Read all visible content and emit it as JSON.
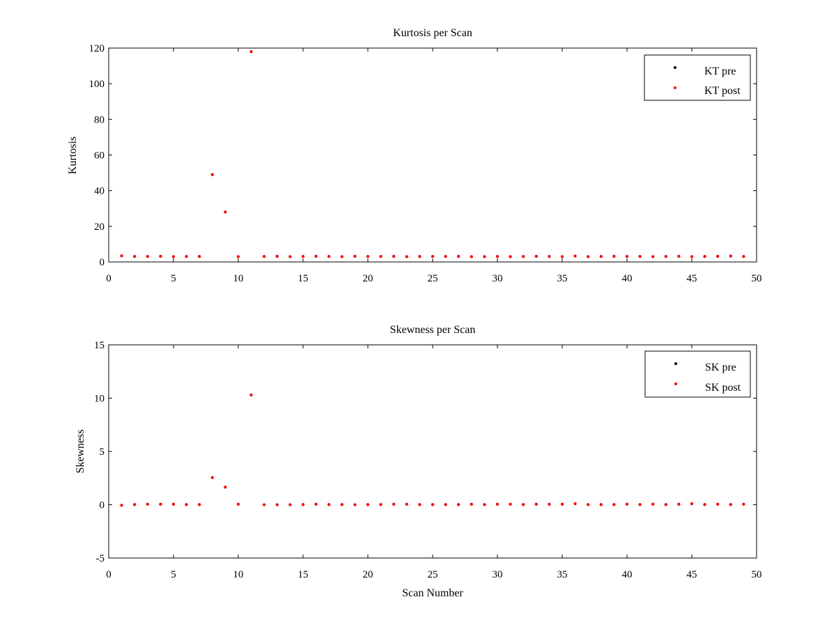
{
  "chart_data": [
    {
      "type": "scatter",
      "title": "Kurtosis per Scan",
      "xlabel": "",
      "ylabel": "Kurtosis",
      "xlim": [
        0,
        50
      ],
      "ylim": [
        0,
        120
      ],
      "xticks": [
        0,
        5,
        10,
        15,
        20,
        25,
        30,
        35,
        40,
        45,
        50
      ],
      "yticks": [
        0,
        20,
        40,
        60,
        80,
        100,
        120
      ],
      "grid": false,
      "legend_position": "top-right",
      "series": [
        {
          "name": "KT pre",
          "color": "#000000",
          "x": [
            1,
            2,
            3,
            4,
            5,
            6,
            7,
            8,
            9,
            10,
            11,
            12,
            13,
            14,
            15,
            16,
            17,
            18,
            19,
            20,
            21,
            22,
            23,
            24,
            25,
            26,
            27,
            28,
            29,
            30,
            31,
            32,
            33,
            34,
            35,
            36,
            37,
            38,
            39,
            40,
            41,
            42,
            43,
            44,
            45,
            46,
            47,
            48,
            49
          ],
          "y": [
            3.4,
            3.1,
            3.1,
            3.2,
            3.0,
            3.1,
            3.1,
            49,
            28,
            3.0,
            118,
            3.1,
            3.2,
            3.0,
            3.1,
            3.2,
            3.1,
            3.0,
            3.2,
            3.1,
            3.1,
            3.2,
            3.0,
            3.1,
            3.1,
            3.1,
            3.2,
            3.0,
            3.0,
            3.1,
            3.0,
            3.1,
            3.2,
            3.1,
            3.0,
            3.3,
            3.0,
            3.1,
            3.2,
            3.1,
            3.1,
            3.0,
            3.1,
            3.2,
            3.0,
            3.1,
            3.2,
            3.3,
            3.1
          ]
        },
        {
          "name": "KT post",
          "color": "#ff0000",
          "x": [
            1,
            2,
            3,
            4,
            5,
            6,
            7,
            8,
            9,
            10,
            11,
            12,
            13,
            14,
            15,
            16,
            17,
            18,
            19,
            20,
            21,
            22,
            23,
            24,
            25,
            26,
            27,
            28,
            29,
            30,
            31,
            32,
            33,
            34,
            35,
            36,
            37,
            38,
            39,
            40,
            41,
            42,
            43,
            44,
            45,
            46,
            47,
            48,
            49
          ],
          "y": [
            3.4,
            3.1,
            3.1,
            3.2,
            3.0,
            3.1,
            3.1,
            49,
            28,
            3.0,
            118,
            3.1,
            3.2,
            3.0,
            3.1,
            3.2,
            3.1,
            3.0,
            3.2,
            3.1,
            3.1,
            3.2,
            3.0,
            3.1,
            3.1,
            3.1,
            3.2,
            3.0,
            3.0,
            3.1,
            3.0,
            3.1,
            3.2,
            3.1,
            3.0,
            3.3,
            3.0,
            3.1,
            3.2,
            3.1,
            3.1,
            3.0,
            3.1,
            3.2,
            3.0,
            3.1,
            3.2,
            3.3,
            3.1
          ]
        }
      ]
    },
    {
      "type": "scatter",
      "title": "Skewness per Scan",
      "xlabel": "Scan Number",
      "ylabel": "Skewness",
      "xlim": [
        0,
        50
      ],
      "ylim": [
        -5,
        15
      ],
      "xticks": [
        0,
        5,
        10,
        15,
        20,
        25,
        30,
        35,
        40,
        45,
        50
      ],
      "yticks": [
        -5,
        0,
        5,
        10,
        15
      ],
      "grid": false,
      "legend_position": "top-right",
      "series": [
        {
          "name": "SK pre",
          "color": "#000000",
          "x": [
            1,
            2,
            3,
            4,
            5,
            6,
            7,
            8,
            9,
            10,
            11,
            12,
            13,
            14,
            15,
            16,
            17,
            18,
            19,
            20,
            21,
            22,
            23,
            24,
            25,
            26,
            27,
            28,
            29,
            30,
            31,
            32,
            33,
            34,
            35,
            36,
            37,
            38,
            39,
            40,
            41,
            42,
            43,
            44,
            45,
            46,
            47,
            48,
            49
          ],
          "y": [
            -0.05,
            0.02,
            0.05,
            0.05,
            0.05,
            0.02,
            0.02,
            2.55,
            1.65,
            0.05,
            10.3,
            0.0,
            0.0,
            0.0,
            0.02,
            0.05,
            0.02,
            0.02,
            0.0,
            0.02,
            0.02,
            0.05,
            0.05,
            0.02,
            0.02,
            0.02,
            0.02,
            0.05,
            0.02,
            0.05,
            0.05,
            0.02,
            0.05,
            0.05,
            0.05,
            0.1,
            0.02,
            0.02,
            0.02,
            0.05,
            0.02,
            0.05,
            0.02,
            0.05,
            0.1,
            0.02,
            0.05,
            0.02,
            0.05
          ]
        },
        {
          "name": "SK post",
          "color": "#ff0000",
          "x": [
            1,
            2,
            3,
            4,
            5,
            6,
            7,
            8,
            9,
            10,
            11,
            12,
            13,
            14,
            15,
            16,
            17,
            18,
            19,
            20,
            21,
            22,
            23,
            24,
            25,
            26,
            27,
            28,
            29,
            30,
            31,
            32,
            33,
            34,
            35,
            36,
            37,
            38,
            39,
            40,
            41,
            42,
            43,
            44,
            45,
            46,
            47,
            48,
            49
          ],
          "y": [
            -0.05,
            0.02,
            0.05,
            0.05,
            0.05,
            0.02,
            0.02,
            2.55,
            1.65,
            0.05,
            10.3,
            0.0,
            0.0,
            0.0,
            0.02,
            0.05,
            0.02,
            0.02,
            0.0,
            0.02,
            0.02,
            0.05,
            0.05,
            0.02,
            0.02,
            0.02,
            0.02,
            0.05,
            0.02,
            0.05,
            0.05,
            0.02,
            0.05,
            0.05,
            0.05,
            0.1,
            0.02,
            0.02,
            0.02,
            0.05,
            0.02,
            0.05,
            0.02,
            0.05,
            0.1,
            0.02,
            0.05,
            0.02,
            0.05
          ]
        }
      ]
    }
  ]
}
